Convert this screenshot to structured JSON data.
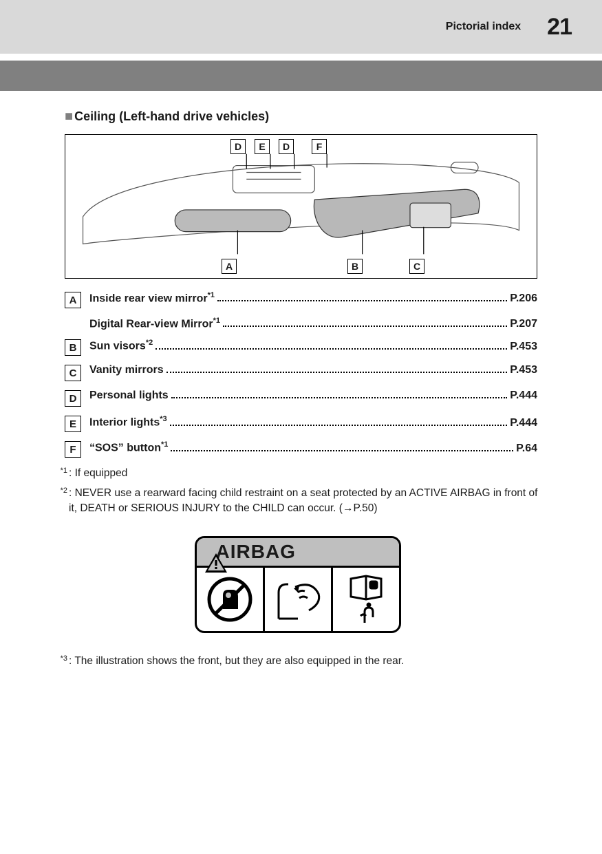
{
  "header": {
    "title": "Pictorial index",
    "page_number": "21"
  },
  "section_title": "Ceiling (Left-hand drive vehicles)",
  "figure": {
    "callouts_top": [
      "D",
      "E",
      "D",
      "F"
    ],
    "callouts_bottom": [
      "A",
      "B",
      "C"
    ]
  },
  "index": [
    {
      "letter": "A",
      "label": "Inside rear view mirror",
      "sup": "*1",
      "page": "P.206"
    },
    {
      "letter": "",
      "label": "Digital Rear-view Mirror",
      "sup": "*1",
      "page": "P.207"
    },
    {
      "letter": "B",
      "label": "Sun visors",
      "sup": "*2",
      "page": "P.453"
    },
    {
      "letter": "C",
      "label": "Vanity mirrors",
      "sup": "",
      "page": "P.453"
    },
    {
      "letter": "D",
      "label": "Personal lights",
      "sup": "",
      "page": "P.444"
    },
    {
      "letter": "E",
      "label": "Interior lights",
      "sup": "*3",
      "page": "P.444"
    },
    {
      "letter": "F",
      "label": "“SOS” button",
      "sup": "*1",
      "page": "P.64"
    }
  ],
  "footnotes": [
    {
      "mark": "*1",
      "text": ": If equipped"
    },
    {
      "mark": "*2",
      "text": ": NEVER use a rearward facing child restraint on a seat protected by an ACTIVE AIRBAG in front of it, DEATH or SERIOUS INJURY to the CHILD can occur. (→P.50)"
    },
    {
      "mark": "*3",
      "text": ": The illustration shows the front, but they are also equipped in the rear."
    }
  ],
  "airbag_label": "AIRBAG",
  "colors": {
    "header_bg": "#d9d9d9",
    "grey_bar": "#808080",
    "airbag_header_bg": "#bfbfbf",
    "text": "#1a1a1a"
  }
}
